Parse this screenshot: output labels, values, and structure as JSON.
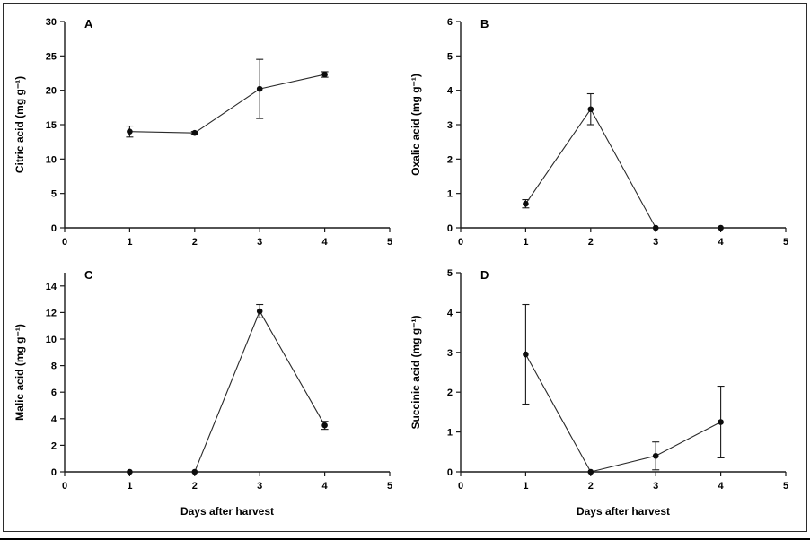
{
  "style": {
    "background": "#ffffff",
    "axis_color": "#1a1a1a",
    "line_color": "#2a2a2a",
    "marker_color": "#0d0d0d",
    "text_color": "#000000"
  },
  "figure": {
    "shared_xlabel": "Days after harvest"
  },
  "chart_data": [
    {
      "type": "line",
      "panel": "A",
      "title": "",
      "ylabel": "Citric acid (mg g⁻¹)",
      "xlabel": "",
      "x": [
        1,
        2,
        3,
        4
      ],
      "values": [
        14.0,
        13.8,
        20.2,
        22.3
      ],
      "errors": [
        0.8,
        0.2,
        4.3,
        0.4
      ],
      "xlim": [
        0,
        5
      ],
      "ylim": [
        0,
        30
      ],
      "xticks": [
        0,
        1,
        2,
        3,
        4,
        5
      ],
      "yticks": [
        0,
        5,
        10,
        15,
        20,
        25,
        30
      ],
      "grid": false,
      "legend": "none",
      "marker": "circle"
    },
    {
      "type": "line",
      "panel": "B",
      "title": "",
      "ylabel": "Oxalic acid (mg g⁻¹)",
      "xlabel": "",
      "x": [
        1,
        2,
        3,
        4
      ],
      "values": [
        0.7,
        3.45,
        0.0,
        0.0
      ],
      "errors": [
        0.12,
        0.45,
        0.0,
        0.0
      ],
      "xlim": [
        0,
        5
      ],
      "ylim": [
        0,
        6
      ],
      "xticks": [
        0,
        1,
        2,
        3,
        4,
        5
      ],
      "yticks": [
        0,
        1,
        2,
        3,
        4,
        5,
        6
      ],
      "grid": false,
      "legend": "none",
      "marker": "circle"
    },
    {
      "type": "line",
      "panel": "C",
      "title": "",
      "ylabel": "Malic acid (mg g⁻¹)",
      "xlabel": "Days after harvest",
      "x": [
        1,
        2,
        3,
        4
      ],
      "values": [
        0.0,
        0.0,
        12.1,
        3.5
      ],
      "errors": [
        0.0,
        0.0,
        0.5,
        0.3
      ],
      "xlim": [
        0,
        5
      ],
      "ylim": [
        0,
        15
      ],
      "xticks": [
        0,
        1,
        2,
        3,
        4,
        5
      ],
      "yticks": [
        0,
        2,
        4,
        6,
        8,
        10,
        12,
        14
      ],
      "grid": false,
      "legend": "none",
      "marker": "circle"
    },
    {
      "type": "line",
      "panel": "D",
      "title": "",
      "ylabel": "Succinic acid (mg g⁻¹)",
      "xlabel": "Days after harvest",
      "x": [
        1,
        2,
        3,
        4
      ],
      "values": [
        2.95,
        0.0,
        0.4,
        1.25
      ],
      "errors": [
        1.25,
        0.0,
        0.35,
        0.9
      ],
      "xlim": [
        0,
        5
      ],
      "ylim": [
        0,
        5
      ],
      "xticks": [
        0,
        1,
        2,
        3,
        4,
        5
      ],
      "yticks": [
        0,
        1,
        2,
        3,
        4,
        5
      ],
      "grid": false,
      "legend": "none",
      "marker": "circle"
    }
  ]
}
